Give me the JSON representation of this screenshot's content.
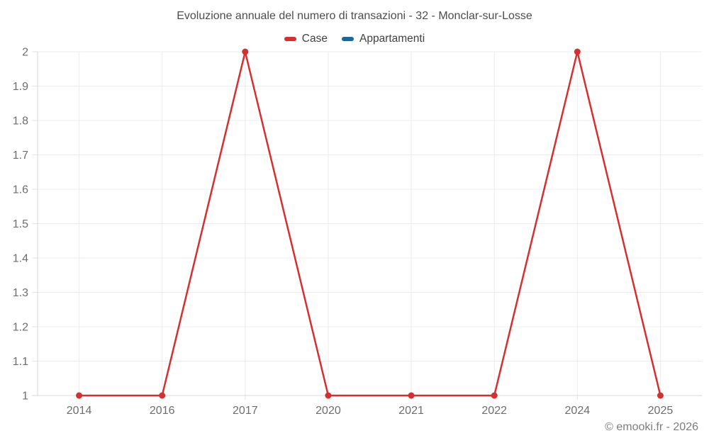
{
  "footer": {
    "watermark": "© emooki.fr - 2026"
  },
  "chart_data": {
    "type": "line",
    "title": "Evoluzione annuale del numero di transazioni - 32 - Monclar-sur-Losse",
    "categories": [
      "2014",
      "2016",
      "2017",
      "2020",
      "2021",
      "2022",
      "2024",
      "2025"
    ],
    "series": [
      {
        "name": "Case",
        "color": "#d62f2f",
        "values": [
          1,
          1,
          2,
          1,
          1,
          1,
          2,
          1
        ]
      },
      {
        "name": "Appartamenti",
        "color": "#17699c",
        "values": []
      }
    ],
    "xlabel": "",
    "ylabel": "",
    "ylim": [
      1,
      2
    ],
    "yticks": [
      1,
      1.1,
      1.2,
      1.3,
      1.4,
      1.5,
      1.6,
      1.7,
      1.8,
      1.9,
      2
    ],
    "grid": true,
    "legend_position": "top",
    "grid_color": "#ececec",
    "axis_color": "#d9d9d9",
    "tick_color": "#e3e3e3",
    "marker": "circle",
    "marker_radius": 4.5,
    "line_width": 2.5
  }
}
